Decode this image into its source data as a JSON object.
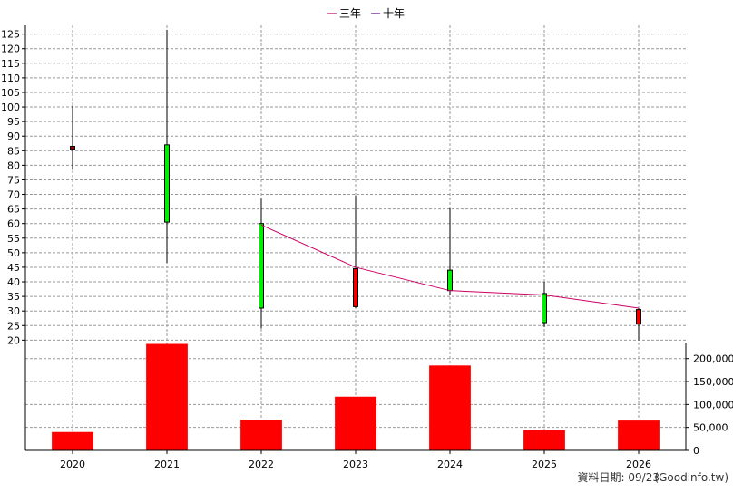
{
  "chart_data": {
    "type": "candlestick_with_volume",
    "legend": [
      {
        "name": "三年",
        "color": "#cc0066"
      },
      {
        "name": "十年",
        "color": "#660099"
      }
    ],
    "years": [
      "2020",
      "2021",
      "2022",
      "2023",
      "2024",
      "2025",
      "2026"
    ],
    "price": {
      "ylim": [
        17,
        128
      ],
      "ticks": [
        20,
        25,
        30,
        35,
        40,
        45,
        50,
        55,
        60,
        65,
        70,
        75,
        80,
        85,
        90,
        95,
        100,
        105,
        110,
        115,
        120,
        125
      ],
      "candles": [
        {
          "year": "2020",
          "open": 86.5,
          "high": 100.5,
          "low": 78.5,
          "close": 85.5,
          "color": "#990000"
        },
        {
          "year": "2021",
          "open": 60.5,
          "high": 126.5,
          "low": 46.5,
          "close": 87.0,
          "color": "#00ee00"
        },
        {
          "year": "2022",
          "open": 31.0,
          "high": 68.5,
          "low": 24.0,
          "close": 60.0,
          "color": "#00ee00"
        },
        {
          "year": "2023",
          "open": 44.5,
          "high": 69.5,
          "low": 31.0,
          "close": 31.5,
          "color": "#ee0000"
        },
        {
          "year": "2024",
          "open": 37.0,
          "high": 65.5,
          "low": 35.5,
          "close": 44.0,
          "color": "#00ee00"
        },
        {
          "year": "2025",
          "open": 26.0,
          "high": 40.0,
          "low": 24.5,
          "close": 36.0,
          "color": "#00ee00"
        },
        {
          "year": "2026",
          "open": 30.5,
          "high": 31.0,
          "low": 20.0,
          "close": 25.5,
          "color": "#ee0000"
        }
      ],
      "three_year_line": {
        "name": "三年",
        "points": [
          {
            "year": "2022",
            "value": 59.5
          },
          {
            "year": "2023",
            "value": 45.0
          },
          {
            "year": "2024",
            "value": 37.0
          },
          {
            "year": "2025",
            "value": 35.5
          },
          {
            "year": "2026",
            "value": 31.0
          }
        ]
      }
    },
    "volume": {
      "ylim": [
        0,
        235000
      ],
      "ticks": [
        {
          "value": 0,
          "label": "0"
        },
        {
          "value": 50000,
          "label": "50,000"
        },
        {
          "value": 100000,
          "label": "100,000"
        },
        {
          "value": 150000,
          "label": "150,000"
        },
        {
          "value": 200000,
          "label": "200,000"
        }
      ],
      "values": [
        40000,
        232000,
        67000,
        117000,
        185000,
        44000,
        65000
      ],
      "color": "#ff0000"
    },
    "grid": true
  },
  "footer": {
    "date_label": "資料日期: 09/23",
    "source": "(Goodinfo.tw)"
  }
}
